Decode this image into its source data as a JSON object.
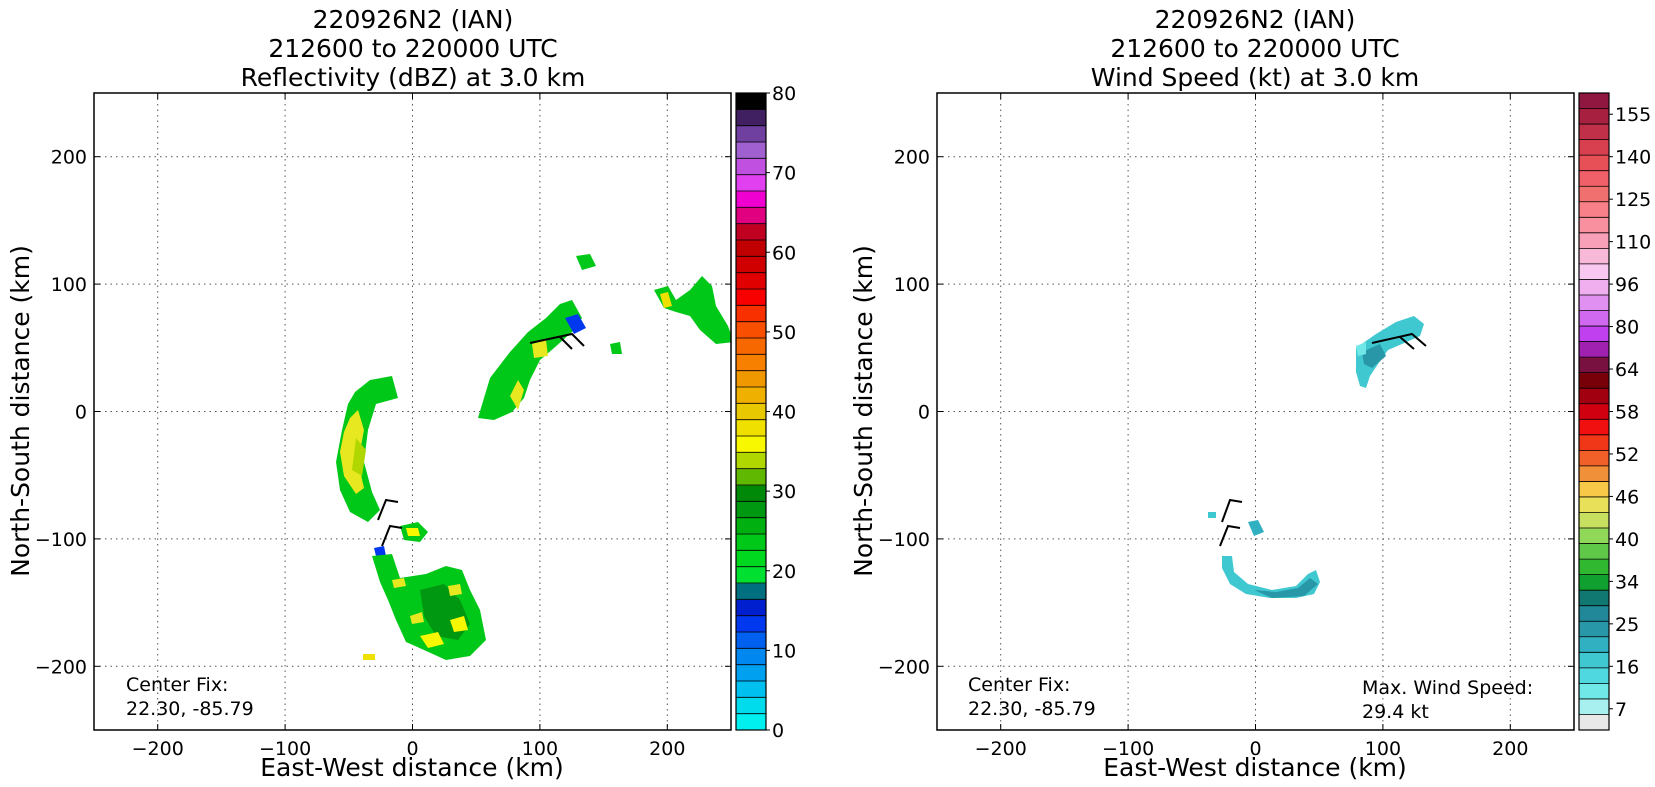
{
  "panels": [
    {
      "title_lines": [
        "220926N2 (IAN)",
        "212600 to 220000 UTC",
        "Reflectivity (dBZ) at 3.0 km"
      ],
      "center_fix_label": "Center Fix:",
      "center_fix_value": "22.30, -85.79",
      "colorbar_labels": [
        "0",
        "10",
        "20",
        "30",
        "40",
        "50",
        "60",
        "70",
        "80"
      ]
    },
    {
      "title_lines": [
        "220926N2 (IAN)",
        "212600 to 220000 UTC",
        "Wind Speed (kt) at 3.0 km"
      ],
      "center_fix_label": "Center Fix:",
      "center_fix_value": "22.30, -85.79",
      "max_wind_label": "Max. Wind Speed:",
      "max_wind_value": "29.4 kt",
      "colorbar_labels": [
        "7",
        "16",
        "25",
        "34",
        "40",
        "46",
        "52",
        "58",
        "64",
        "80",
        "96",
        "110",
        "125",
        "140",
        "155"
      ]
    }
  ],
  "chart_data": [
    {
      "type": "heatmap",
      "title": "220926N2 (IAN) 212600 to 220000 UTC Reflectivity (dBZ) at 3.0 km",
      "xlabel": "East-West distance (km)",
      "ylabel": "North-South distance (km)",
      "xlim": [
        -250,
        250
      ],
      "ylim": [
        -250,
        250
      ],
      "xticks": [
        -200,
        -100,
        0,
        100,
        200
      ],
      "yticks": [
        -200,
        -100,
        0,
        100,
        200
      ],
      "grid": true,
      "colorbar": {
        "label_values": [
          0,
          10,
          20,
          30,
          40,
          50,
          60,
          70,
          80
        ],
        "colors": [
          "#00f0f0",
          "#00dcec",
          "#00c0f0",
          "#00a0f0",
          "#0088f0",
          "#0060f0",
          "#0038f0",
          "#0020d0",
          "#007080",
          "#00e030",
          "#00d820",
          "#00c818",
          "#00b010",
          "#009810",
          "#008808",
          "#60b800",
          "#b0d800",
          "#f8f800",
          "#f0e000",
          "#e8c800",
          "#f0b000",
          "#f09800",
          "#f88000",
          "#f86800",
          "#f85000",
          "#f83000",
          "#f80000",
          "#e00000",
          "#d00000",
          "#c00000",
          "#c00020",
          "#e00080",
          "#f000d0",
          "#e040f0",
          "#c050e0",
          "#a060d0",
          "#7040a0",
          "#402060",
          "#000000"
        ]
      },
      "features": [
        {
          "x": -40,
          "y": -40,
          "class": "green"
        },
        {
          "x": 0,
          "y": -170,
          "class": "green"
        },
        {
          "x": 90,
          "y": 40,
          "class": "green"
        },
        {
          "x": 215,
          "y": 80,
          "class": "green"
        },
        {
          "x": 135,
          "y": 115,
          "class": "green"
        },
        {
          "x": 160,
          "y": 48,
          "class": "green"
        },
        {
          "x": -32,
          "y": -190,
          "class": "yellow"
        },
        {
          "x": 122,
          "y": 60,
          "class": "blue"
        }
      ],
      "wind_barbs": [
        {
          "x": 100,
          "y": 53
        },
        {
          "x": -29,
          "y": -82
        },
        {
          "x": -26,
          "y": -107
        }
      ],
      "annotation": "Center Fix: 22.30, -85.79"
    },
    {
      "type": "heatmap",
      "title": "220926N2 (IAN) 212600 to 220000 UTC Wind Speed (kt) at 3.0 km",
      "xlabel": "East-West distance (km)",
      "ylabel": "North-South distance (km)",
      "xlim": [
        -250,
        250
      ],
      "ylim": [
        -250,
        250
      ],
      "xticks": [
        -200,
        -100,
        0,
        100,
        200
      ],
      "yticks": [
        -200,
        -100,
        0,
        100,
        200
      ],
      "grid": true,
      "colorbar": {
        "label_values": [
          7,
          16,
          25,
          34,
          40,
          46,
          52,
          58,
          64,
          80,
          96,
          110,
          125,
          140,
          155
        ],
        "colors": [
          "#e8e8e8",
          "#a8f0f0",
          "#70e8e8",
          "#50d8e0",
          "#40c8d0",
          "#30b0c0",
          "#2898a8",
          "#208898",
          "#107870",
          "#10a030",
          "#30b830",
          "#60c848",
          "#90d858",
          "#c8e060",
          "#e8e058",
          "#f8c848",
          "#f09038",
          "#f06028",
          "#f03818",
          "#f01010",
          "#d00010",
          "#a00010",
          "#780008",
          "#781040",
          "#a020b0",
          "#c040f0",
          "#d068f0",
          "#e090f0",
          "#f0b0f0",
          "#f8c8f0",
          "#f8b8d8",
          "#f8a0b8",
          "#f890a0",
          "#f88088",
          "#f07070",
          "#f06068",
          "#e85058",
          "#d84050",
          "#c03048",
          "#a82040",
          "#901840"
        ]
      },
      "features": [
        {
          "x": 110,
          "y": 50,
          "class": "teal"
        },
        {
          "x": -10,
          "y": -135,
          "class": "teal"
        }
      ],
      "wind_barbs": [
        {
          "x": 95,
          "y": 53
        },
        {
          "x": -25,
          "y": -80
        },
        {
          "x": -27,
          "y": -105
        }
      ],
      "annotation": "Center Fix: 22.30, -85.79",
      "max_wind_speed_kt": 29.4
    }
  ]
}
